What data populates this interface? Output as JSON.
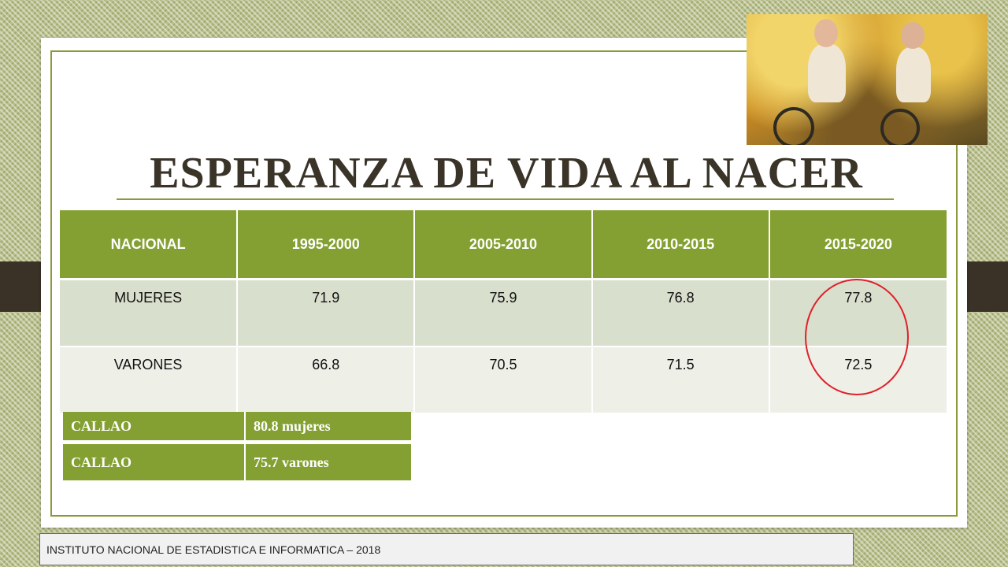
{
  "title": "ESPERANZA DE VIDA AL NACER",
  "table": {
    "headers": [
      "NACIONAL",
      "1995-2000",
      "2005-2010",
      "2010-2015",
      "2015-2020"
    ],
    "rows": [
      [
        "MUJERES",
        "71.9",
        "75.9",
        "76.8",
        "77.8"
      ],
      [
        "VARONES",
        "66.8",
        "70.5",
        "71.5",
        "72.5"
      ]
    ]
  },
  "callao": [
    {
      "label": "CALLAO",
      "value": "80.8 mujeres"
    },
    {
      "label": "CALLAO",
      "value": "75.7 varones"
    }
  ],
  "footer": "INSTITUTO NACIONAL DE ESTADISTICA E INFORMATICA – 2018",
  "colors": {
    "accent_green": "#84a032",
    "frame_green": "#8a9a3a",
    "highlight_red": "#e0202a",
    "title_text": "#3a3328"
  },
  "photo": {
    "description_icon": "elderly-couple-cycling-photo"
  }
}
